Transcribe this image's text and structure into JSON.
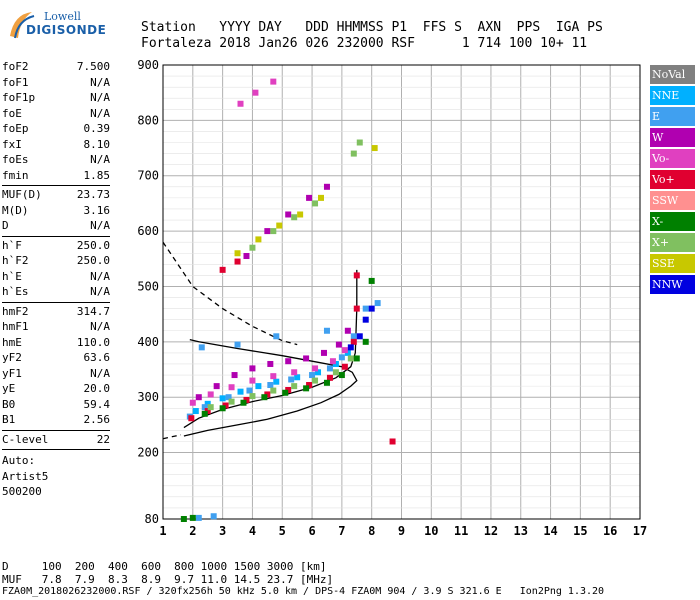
{
  "logo": {
    "line1": "Lowell",
    "line2": "DIGISONDE"
  },
  "header": {
    "labels": "Station   YYYY DAY   DDD HHMMSS P1  FFS S  AXN  PPS  IGA PS",
    "values": "Fortaleza 2018 Jan26 026 232000 RSF      1 714 100 10+ 11"
  },
  "params": {
    "g1": [
      [
        "foF2",
        "7.500"
      ],
      [
        "foF1",
        "N/A"
      ],
      [
        "foF1p",
        "N/A"
      ],
      [
        "foE",
        "N/A"
      ],
      [
        "foEp",
        "0.39"
      ],
      [
        "fxI",
        "8.10"
      ],
      [
        "foEs",
        "N/A"
      ],
      [
        "fmin",
        "1.85"
      ]
    ],
    "g2": [
      [
        "MUF(D)",
        "23.73"
      ],
      [
        "M(D)",
        "3.16"
      ],
      [
        "D",
        "N/A"
      ]
    ],
    "g3": [
      [
        "h`F",
        "250.0"
      ],
      [
        "h`F2",
        "250.0"
      ],
      [
        "h`E",
        "N/A"
      ],
      [
        "h`Es",
        "N/A"
      ]
    ],
    "g4": [
      [
        "hmF2",
        "314.7"
      ],
      [
        "hmF1",
        "N/A"
      ],
      [
        "hmE",
        "110.0"
      ],
      [
        "yF2",
        "63.6"
      ],
      [
        "yF1",
        "N/A"
      ],
      [
        "yE",
        "20.0"
      ],
      [
        "B0",
        "59.4"
      ],
      [
        "B1",
        "2.56"
      ]
    ],
    "g5": [
      [
        "C-level",
        "22"
      ]
    ]
  },
  "auto": {
    "l1": "Auto:",
    "l2": "Artist5",
    "l3": "500200"
  },
  "footer": {
    "d_line": "D     100  200  400  600  800 1000 1500 3000 [km]",
    "muf_line": "MUF   7.8  7.9  8.3  8.9  9.7 11.0 14.5 23.7 [MHz]",
    "file_line": "FZA0M_2018026232000.RSF / 320fx256h 50 kHz 5.0 km / DPS-4 FZA0M 904 / 3.9 S 321.6 E   Ion2Png 1.3.20"
  },
  "legend": [
    {
      "label": "NoVal",
      "color": "#808080"
    },
    {
      "label": "NNE",
      "color": "#00b0ff"
    },
    {
      "label": "E",
      "color": "#40a0f0"
    },
    {
      "label": "W",
      "color": "#b000b0"
    },
    {
      "label": "Vo-",
      "color": "#e040c0"
    },
    {
      "label": "Vo+",
      "color": "#e00030"
    },
    {
      "label": "SSW",
      "color": "#ff9090"
    },
    {
      "label": "X-",
      "color": "#008000"
    },
    {
      "label": "X+",
      "color": "#80c060"
    },
    {
      "label": "SSE",
      "color": "#c8c800"
    },
    {
      "label": "NNW",
      "color": "#0000e0"
    }
  ],
  "chart_data": {
    "type": "scatter",
    "xlim": [
      1,
      17
    ],
    "ylim": [
      80,
      900
    ],
    "x_ticks": [
      1,
      2,
      3,
      4,
      5,
      6,
      7,
      8,
      9,
      10,
      11,
      12,
      13,
      14,
      15,
      16,
      17
    ],
    "y_ticks": [
      80,
      200,
      300,
      400,
      500,
      600,
      700,
      800,
      900
    ],
    "grid": true,
    "series": [
      {
        "name": "NNE",
        "color": "#00b0ff",
        "points": [
          [
            2.1,
            275
          ],
          [
            2.5,
            288
          ],
          [
            3.0,
            298
          ],
          [
            3.6,
            310
          ],
          [
            4.2,
            320
          ],
          [
            4.8,
            328
          ],
          [
            5.5,
            336
          ],
          [
            6.2,
            345
          ],
          [
            6.8,
            360
          ],
          [
            7.2,
            380
          ]
        ]
      },
      {
        "name": "E",
        "color": "#40a0f0",
        "points": [
          [
            1.9,
            265
          ],
          [
            2.4,
            282
          ],
          [
            3.2,
            300
          ],
          [
            3.9,
            312
          ],
          [
            4.6,
            322
          ],
          [
            5.3,
            332
          ],
          [
            6.0,
            340
          ],
          [
            6.6,
            352
          ],
          [
            7.0,
            372
          ],
          [
            7.4,
            410
          ],
          [
            2.3,
            390
          ],
          [
            3.5,
            395
          ],
          [
            4.8,
            410
          ],
          [
            6.5,
            420
          ],
          [
            7.8,
            460
          ],
          [
            8.2,
            470
          ],
          [
            2.2,
            82
          ],
          [
            2.7,
            85
          ]
        ]
      },
      {
        "name": "W",
        "color": "#b000b0",
        "points": [
          [
            2.2,
            300
          ],
          [
            2.8,
            320
          ],
          [
            3.4,
            340
          ],
          [
            4.0,
            352
          ],
          [
            4.6,
            360
          ],
          [
            5.2,
            365
          ],
          [
            5.8,
            370
          ],
          [
            6.4,
            380
          ],
          [
            6.9,
            395
          ],
          [
            7.2,
            420
          ],
          [
            3.8,
            555
          ],
          [
            4.5,
            600
          ],
          [
            5.2,
            630
          ],
          [
            5.9,
            660
          ],
          [
            6.5,
            680
          ]
        ]
      },
      {
        "name": "Vo-",
        "color": "#e040c0",
        "points": [
          [
            2.0,
            290
          ],
          [
            2.6,
            305
          ],
          [
            3.3,
            318
          ],
          [
            4.0,
            330
          ],
          [
            4.7,
            338
          ],
          [
            5.4,
            345
          ],
          [
            6.1,
            352
          ],
          [
            6.7,
            365
          ],
          [
            7.1,
            385
          ],
          [
            3.6,
            830
          ],
          [
            4.1,
            850
          ],
          [
            4.7,
            870
          ]
        ]
      },
      {
        "name": "Vo+",
        "color": "#e00030",
        "points": [
          [
            1.95,
            262
          ],
          [
            2.5,
            275
          ],
          [
            3.1,
            285
          ],
          [
            3.8,
            295
          ],
          [
            4.5,
            305
          ],
          [
            5.2,
            313
          ],
          [
            5.9,
            322
          ],
          [
            6.6,
            335
          ],
          [
            7.1,
            355
          ],
          [
            7.4,
            400
          ],
          [
            7.5,
            460
          ],
          [
            7.5,
            520
          ],
          [
            3.0,
            530
          ],
          [
            3.5,
            545
          ],
          [
            8.7,
            220
          ]
        ]
      },
      {
        "name": "X-",
        "color": "#008000",
        "points": [
          [
            2.4,
            270
          ],
          [
            3.0,
            280
          ],
          [
            3.7,
            290
          ],
          [
            4.4,
            300
          ],
          [
            5.1,
            308
          ],
          [
            5.8,
            316
          ],
          [
            6.5,
            326
          ],
          [
            7.0,
            340
          ],
          [
            7.5,
            370
          ],
          [
            7.8,
            400
          ],
          [
            8.0,
            510
          ],
          [
            1.7,
            80
          ],
          [
            2.0,
            82
          ]
        ]
      },
      {
        "name": "X+",
        "color": "#80c060",
        "points": [
          [
            2.6,
            282
          ],
          [
            3.3,
            292
          ],
          [
            4.0,
            302
          ],
          [
            4.7,
            312
          ],
          [
            5.4,
            320
          ],
          [
            6.1,
            330
          ],
          [
            6.8,
            345
          ],
          [
            7.3,
            370
          ],
          [
            4.0,
            570
          ],
          [
            4.7,
            600
          ],
          [
            5.4,
            625
          ],
          [
            6.1,
            650
          ],
          [
            7.4,
            740
          ],
          [
            7.6,
            760
          ]
        ]
      },
      {
        "name": "SSE",
        "color": "#c8c800",
        "points": [
          [
            3.5,
            560
          ],
          [
            4.2,
            585
          ],
          [
            4.9,
            610
          ],
          [
            5.6,
            630
          ],
          [
            6.3,
            660
          ],
          [
            8.1,
            750
          ]
        ]
      },
      {
        "name": "NNW",
        "color": "#0000e0",
        "points": [
          [
            7.6,
            410
          ],
          [
            7.8,
            440
          ],
          [
            8.0,
            460
          ],
          [
            7.3,
            390
          ]
        ]
      }
    ],
    "curves": [
      {
        "name": "profile",
        "style": "solid",
        "points": [
          [
            1.7,
            230
          ],
          [
            2.5,
            240
          ],
          [
            3.5,
            250
          ],
          [
            4.5,
            260
          ],
          [
            5.5,
            275
          ],
          [
            6.3,
            290
          ],
          [
            6.9,
            305
          ],
          [
            7.3,
            320
          ],
          [
            7.5,
            330
          ],
          [
            7.35,
            345
          ],
          [
            7.0,
            355
          ],
          [
            6.0,
            365
          ],
          [
            5.0,
            375
          ],
          [
            3.5,
            388
          ],
          [
            2.2,
            400
          ],
          [
            1.9,
            404
          ]
        ]
      },
      {
        "name": "trace",
        "style": "solid",
        "points": [
          [
            1.7,
            245
          ],
          [
            2.2,
            262
          ],
          [
            3.0,
            278
          ],
          [
            4.0,
            292
          ],
          [
            5.0,
            303
          ],
          [
            6.0,
            318
          ],
          [
            6.8,
            335
          ],
          [
            7.3,
            355
          ],
          [
            7.45,
            380
          ],
          [
            7.5,
            460
          ],
          [
            7.5,
            530
          ]
        ]
      },
      {
        "name": "MUF",
        "style": "dashed",
        "points": [
          [
            1.0,
            580
          ],
          [
            1.5,
            540
          ],
          [
            2.0,
            500
          ],
          [
            3.0,
            460
          ],
          [
            4.0,
            428
          ],
          [
            5.0,
            402
          ],
          [
            5.5,
            395
          ]
        ]
      },
      {
        "name": "bottom-dashed",
        "style": "dashed",
        "points": [
          [
            1.0,
            225
          ],
          [
            1.6,
            232
          ]
        ]
      }
    ]
  }
}
